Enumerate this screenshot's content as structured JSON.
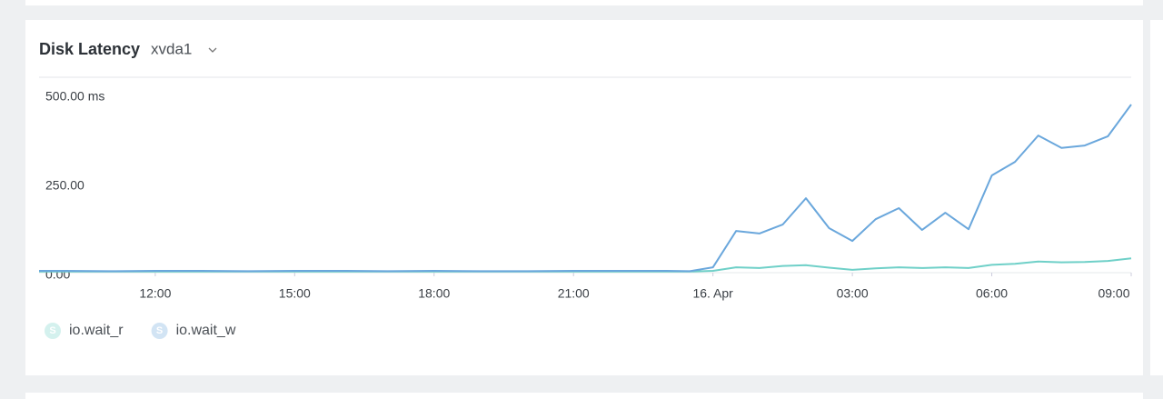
{
  "header": {
    "title": "Disk Latency",
    "selector": "xvda1"
  },
  "chart_data": {
    "type": "line",
    "x": [
      9.5,
      10,
      11,
      12,
      13,
      14,
      15,
      16,
      17,
      18,
      19,
      20,
      21,
      22,
      23,
      23.5,
      24,
      24.5,
      25,
      25.5,
      26,
      26.5,
      27,
      27.5,
      28,
      28.5,
      29,
      29.5,
      30,
      30.5,
      31,
      31.5,
      32,
      32.5,
      33
    ],
    "series": [
      {
        "name": "io.wait_r",
        "color": "#6fd0c8",
        "values": [
          3,
          3,
          3,
          3,
          3,
          3,
          3,
          3,
          3,
          3,
          3,
          3,
          3,
          3,
          3,
          3,
          5,
          15,
          13,
          19,
          21,
          14,
          8,
          12,
          15,
          13,
          15,
          13,
          22,
          25,
          31,
          29,
          30,
          33,
          40
        ]
      },
      {
        "name": "io.wait_w",
        "color": "#6aa7dc",
        "values": [
          5,
          5,
          4,
          5,
          5,
          4,
          5,
          5,
          4,
          5,
          4,
          4,
          5,
          5,
          5,
          4,
          15,
          117,
          110,
          135,
          209,
          125,
          89,
          150,
          181,
          120,
          168,
          122,
          273,
          311,
          385,
          350,
          357,
          383,
          472
        ]
      }
    ],
    "legend_icon_label": "S",
    "xlim": [
      9.5,
      33
    ],
    "xticks": [
      {
        "value": 12,
        "label": "12:00"
      },
      {
        "value": 15,
        "label": "15:00"
      },
      {
        "value": 18,
        "label": "18:00"
      },
      {
        "value": 21,
        "label": "21:00"
      },
      {
        "value": 24,
        "label": "16. Apr"
      },
      {
        "value": 27,
        "label": "03:00"
      },
      {
        "value": 30,
        "label": "06:00"
      },
      {
        "value": 33,
        "label": "09:00"
      }
    ],
    "ylim": [
      0,
      500
    ],
    "yticks": [
      {
        "value": 0,
        "label": "0.00"
      },
      {
        "value": 250,
        "label": "250.00"
      },
      {
        "value": 500,
        "label": "500.00 ms"
      }
    ],
    "grid": false
  }
}
